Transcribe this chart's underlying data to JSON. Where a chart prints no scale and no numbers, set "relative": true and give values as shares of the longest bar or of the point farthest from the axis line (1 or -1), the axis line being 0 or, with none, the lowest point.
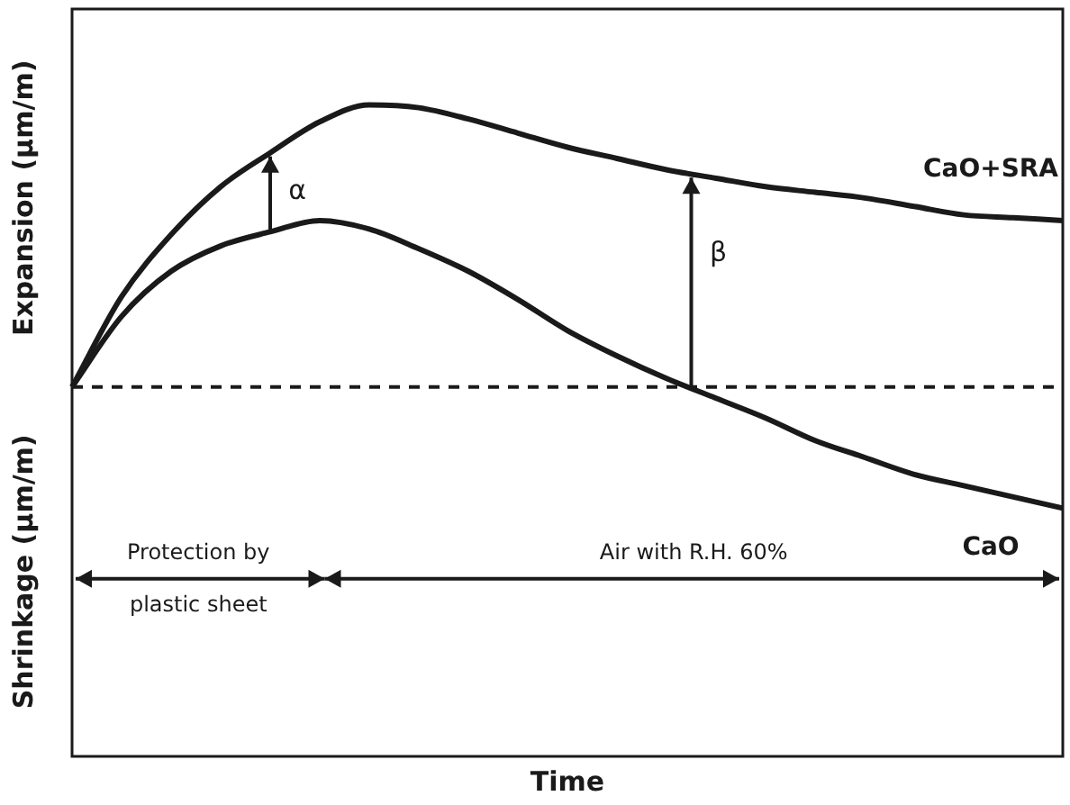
{
  "chart_data": {
    "type": "line",
    "relative": true,
    "ylabel": "Expansion (μm/m)",
    "categories": [
      null,
      null,
      null,
      null,
      null,
      null,
      null,
      null,
      null,
      null,
      null,
      null,
      null,
      null,
      null,
      null,
      null,
      null,
      null,
      null,
      null
    ],
    "series": [
      {
        "name": "CaO+SRA",
        "color": "#1a1a1a",
        "values": [
          0,
          0.32,
          0.54,
          0.71,
          0.83,
          0.94,
          1.0,
          0.99,
          0.95,
          0.9,
          0.85,
          0.81,
          0.77,
          0.74,
          0.71,
          0.69,
          0.67,
          0.64,
          0.61,
          0.6,
          0.59
        ]
      },
      {
        "name": "CaO",
        "color": "#1a1a1a",
        "values": [
          0,
          0.25,
          0.41,
          0.5,
          0.55,
          0.59,
          0.56,
          0.49,
          0.41,
          0.31,
          0.2,
          0.11,
          0.03,
          -0.04,
          -0.11,
          -0.19,
          -0.25,
          -0.31,
          -0.35,
          -0.39,
          -0.43
        ]
      }
    ],
    "ref_lines": [
      {
        "axis": "y",
        "value": 0,
        "line_style": "dashed",
        "color": "#1a1a1a"
      }
    ],
    "annotations": [
      "Shrinkage (μm/m)",
      "α",
      "β",
      "Protection by\nplastic sheet",
      "Air with R.H. 60%",
      "Time"
    ],
    "legend": false
  }
}
